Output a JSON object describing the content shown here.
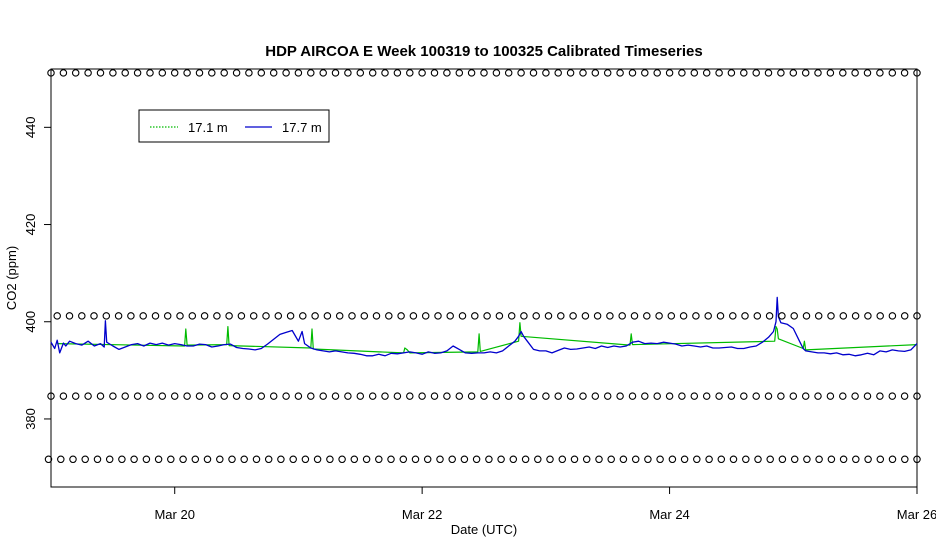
{
  "chart_data": {
    "type": "line",
    "title": "HDP AIRCOA E  Week 100319 to 100325  Calibrated Timeseries",
    "xlabel": "Date (UTC)",
    "ylabel": "CO2 (ppm)",
    "xlim": [
      19.0,
      26.0
    ],
    "ylim": [
      366,
      452
    ],
    "x_ticks": [
      {
        "value": 20,
        "label": "Mar 20"
      },
      {
        "value": 22,
        "label": "Mar 22"
      },
      {
        "value": 24,
        "label": "Mar 24"
      },
      {
        "value": 26,
        "label": "Mar 26"
      }
    ],
    "y_ticks": [
      380,
      400,
      420,
      440
    ],
    "grid": false,
    "legend": {
      "position": "top-left"
    },
    "series": [
      {
        "name": "17.1 m",
        "color": "#00bb00",
        "points": [
          [
            19.05,
            395.5
          ],
          [
            20.08,
            395.0
          ],
          [
            20.09,
            398.5
          ],
          [
            20.1,
            395.2
          ],
          [
            20.42,
            395.3
          ],
          [
            20.43,
            399.0
          ],
          [
            20.44,
            395.1
          ],
          [
            21.1,
            394.6
          ],
          [
            21.11,
            398.5
          ],
          [
            21.12,
            394.4
          ],
          [
            21.85,
            393.6
          ],
          [
            21.86,
            394.6
          ],
          [
            21.88,
            394.2
          ],
          [
            21.9,
            393.6
          ],
          [
            22.45,
            393.8
          ],
          [
            22.46,
            397.5
          ],
          [
            22.47,
            393.9
          ],
          [
            22.78,
            396.0
          ],
          [
            22.79,
            399.8
          ],
          [
            22.8,
            397.0
          ],
          [
            23.68,
            395.2
          ],
          [
            23.69,
            397.5
          ],
          [
            23.7,
            395.3
          ],
          [
            24.85,
            396.0
          ],
          [
            24.86,
            399.0
          ],
          [
            24.87,
            398.5
          ],
          [
            24.88,
            396.5
          ],
          [
            25.08,
            394.5
          ],
          [
            25.09,
            396.0
          ],
          [
            25.1,
            394.2
          ],
          [
            26.0,
            395.3
          ]
        ]
      },
      {
        "name": "17.7 m",
        "color": "#0000cc",
        "points": [
          [
            19.0,
            395.8
          ],
          [
            19.03,
            394.5
          ],
          [
            19.05,
            396.2
          ],
          [
            19.07,
            393.6
          ],
          [
            19.1,
            395.6
          ],
          [
            19.12,
            395.0
          ],
          [
            19.15,
            396.0
          ],
          [
            19.2,
            395.5
          ],
          [
            19.25,
            395.2
          ],
          [
            19.3,
            396.0
          ],
          [
            19.35,
            395.0
          ],
          [
            19.4,
            395.5
          ],
          [
            19.43,
            394.8
          ],
          [
            19.44,
            400.2
          ],
          [
            19.45,
            395.8
          ],
          [
            19.5,
            395.0
          ],
          [
            19.55,
            394.3
          ],
          [
            19.6,
            394.8
          ],
          [
            19.65,
            395.3
          ],
          [
            19.7,
            395.5
          ],
          [
            19.75,
            395.0
          ],
          [
            19.8,
            395.6
          ],
          [
            19.85,
            395.3
          ],
          [
            19.9,
            395.6
          ],
          [
            19.95,
            395.2
          ],
          [
            20.0,
            395.5
          ],
          [
            20.05,
            395.3
          ],
          [
            20.1,
            395.0
          ],
          [
            20.15,
            395.0
          ],
          [
            20.2,
            395.4
          ],
          [
            20.25,
            395.3
          ],
          [
            20.3,
            394.8
          ],
          [
            20.35,
            395.0
          ],
          [
            20.4,
            395.3
          ],
          [
            20.45,
            395.4
          ],
          [
            20.5,
            394.7
          ],
          [
            20.55,
            394.5
          ],
          [
            20.6,
            394.4
          ],
          [
            20.65,
            394.2
          ],
          [
            20.7,
            394.5
          ],
          [
            20.75,
            395.4
          ],
          [
            20.8,
            396.4
          ],
          [
            20.85,
            397.4
          ],
          [
            20.9,
            397.8
          ],
          [
            20.95,
            398.2
          ],
          [
            21.0,
            396.0
          ],
          [
            21.03,
            398.0
          ],
          [
            21.05,
            395.5
          ],
          [
            21.1,
            394.6
          ],
          [
            21.15,
            394.2
          ],
          [
            21.2,
            394.0
          ],
          [
            21.25,
            393.8
          ],
          [
            21.3,
            394.0
          ],
          [
            21.35,
            393.8
          ],
          [
            21.4,
            393.6
          ],
          [
            21.45,
            393.5
          ],
          [
            21.5,
            393.3
          ],
          [
            21.55,
            393.0
          ],
          [
            21.6,
            393.0
          ],
          [
            21.65,
            393.3
          ],
          [
            21.7,
            393.0
          ],
          [
            21.75,
            393.5
          ],
          [
            21.8,
            393.4
          ],
          [
            21.85,
            393.6
          ],
          [
            21.9,
            393.8
          ],
          [
            21.95,
            393.6
          ],
          [
            22.0,
            393.3
          ],
          [
            22.05,
            393.8
          ],
          [
            22.1,
            393.5
          ],
          [
            22.15,
            393.6
          ],
          [
            22.2,
            394.0
          ],
          [
            22.25,
            395.0
          ],
          [
            22.3,
            394.3
          ],
          [
            22.35,
            393.6
          ],
          [
            22.4,
            393.5
          ],
          [
            22.45,
            393.6
          ],
          [
            22.5,
            393.6
          ],
          [
            22.55,
            393.8
          ],
          [
            22.6,
            393.6
          ],
          [
            22.65,
            394.0
          ],
          [
            22.7,
            395.0
          ],
          [
            22.75,
            396.0
          ],
          [
            22.78,
            397.0
          ],
          [
            22.8,
            398.0
          ],
          [
            22.82,
            397.0
          ],
          [
            22.85,
            396.0
          ],
          [
            22.9,
            394.3
          ],
          [
            22.95,
            394.0
          ],
          [
            23.0,
            394.0
          ],
          [
            23.05,
            393.6
          ],
          [
            23.1,
            394.1
          ],
          [
            23.15,
            394.6
          ],
          [
            23.2,
            394.3
          ],
          [
            23.25,
            394.4
          ],
          [
            23.3,
            394.6
          ],
          [
            23.35,
            394.8
          ],
          [
            23.4,
            394.5
          ],
          [
            23.45,
            395.0
          ],
          [
            23.5,
            394.7
          ],
          [
            23.55,
            395.0
          ],
          [
            23.6,
            394.8
          ],
          [
            23.65,
            395.0
          ],
          [
            23.7,
            395.8
          ],
          [
            23.75,
            396.0
          ],
          [
            23.8,
            395.5
          ],
          [
            23.85,
            395.6
          ],
          [
            23.9,
            395.5
          ],
          [
            23.95,
            395.8
          ],
          [
            24.0,
            395.6
          ],
          [
            24.05,
            395.4
          ],
          [
            24.1,
            395.0
          ],
          [
            24.15,
            395.2
          ],
          [
            24.2,
            395.0
          ],
          [
            24.25,
            394.8
          ],
          [
            24.3,
            395.0
          ],
          [
            24.35,
            394.6
          ],
          [
            24.4,
            394.6
          ],
          [
            24.45,
            394.7
          ],
          [
            24.5,
            394.8
          ],
          [
            24.55,
            394.5
          ],
          [
            24.6,
            394.5
          ],
          [
            24.65,
            394.8
          ],
          [
            24.7,
            395.0
          ],
          [
            24.75,
            395.8
          ],
          [
            24.8,
            396.8
          ],
          [
            24.84,
            398.0
          ],
          [
            24.86,
            400.0
          ],
          [
            24.87,
            405.0
          ],
          [
            24.88,
            401.0
          ],
          [
            24.9,
            399.8
          ],
          [
            24.95,
            399.5
          ],
          [
            25.0,
            398.6
          ],
          [
            25.05,
            396.0
          ],
          [
            25.08,
            394.5
          ],
          [
            25.1,
            394.0
          ],
          [
            25.15,
            393.8
          ],
          [
            25.2,
            393.6
          ],
          [
            25.25,
            393.6
          ],
          [
            25.3,
            393.4
          ],
          [
            25.35,
            393.6
          ],
          [
            25.4,
            393.2
          ],
          [
            25.45,
            393.3
          ],
          [
            25.5,
            393.0
          ],
          [
            25.55,
            393.2
          ],
          [
            25.6,
            393.5
          ],
          [
            25.65,
            393.2
          ],
          [
            25.7,
            394.0
          ],
          [
            25.75,
            393.8
          ],
          [
            25.8,
            394.2
          ],
          [
            25.85,
            394.0
          ],
          [
            25.9,
            393.9
          ],
          [
            25.95,
            394.2
          ],
          [
            26.0,
            395.5
          ]
        ]
      },
      {
        "marker": "circle",
        "color": "#000000",
        "rows": [
          {
            "y": 451.2,
            "x_start": 19.0,
            "x_end": 26.0,
            "count": 71
          },
          {
            "y": 401.2,
            "x_start": 19.05,
            "x_end": 26.0,
            "count": 71
          },
          {
            "y": 384.7,
            "x_start": 19.0,
            "x_end": 26.0,
            "count": 71
          },
          {
            "y": 371.7,
            "x_start": 18.98,
            "x_end": 26.0,
            "count": 72
          }
        ]
      }
    ]
  }
}
